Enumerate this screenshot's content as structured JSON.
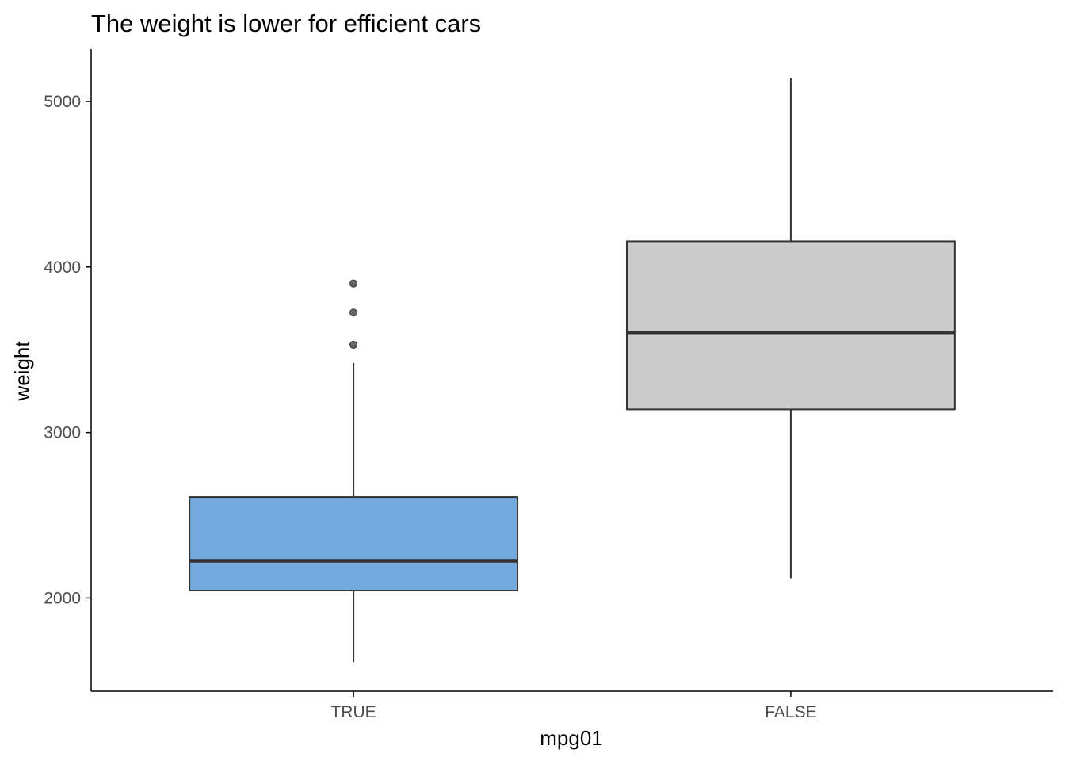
{
  "chart_data": {
    "type": "boxplot",
    "title": "The weight is lower for efficient cars",
    "xlabel": "mpg01",
    "ylabel": "weight",
    "categories": [
      "TRUE",
      "FALSE"
    ],
    "boxes": [
      {
        "category": "TRUE",
        "whisker_low": 1613,
        "q1": 2045,
        "median": 2225,
        "q3": 2610,
        "whisker_high": 3420,
        "outliers": [
          3530,
          3725,
          3900
        ],
        "fill": "#74a9de"
      },
      {
        "category": "FALSE",
        "whisker_low": 2120,
        "q1": 3140,
        "median": 3605,
        "q3": 4155,
        "whisker_high": 5140,
        "outliers": [],
        "fill": "#cccccc"
      }
    ],
    "yticks": [
      2000,
      3000,
      4000,
      5000
    ],
    "ylim": [
      1437,
      5316
    ],
    "grid": false,
    "legend": "none",
    "colors": {
      "box_line": "#333333",
      "outlier": "#666666",
      "axis": "#000000",
      "tick_label": "#4d4d4d"
    }
  }
}
